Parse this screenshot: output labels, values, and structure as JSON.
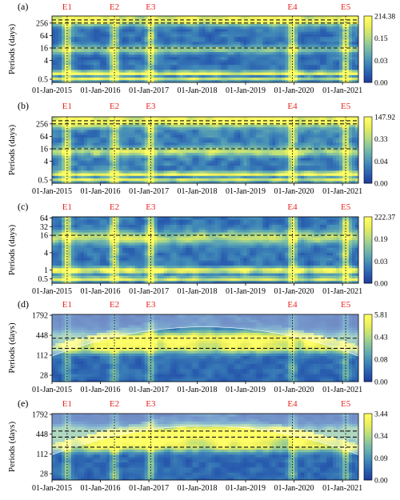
{
  "figure": {
    "ylabel": "Periods (days)",
    "event_color": "#e8251f",
    "line_color": "#111111"
  },
  "colormap": [
    "#1f3f9e",
    "#2a60b0",
    "#3f87b8",
    "#62aab0",
    "#8cc79b",
    "#bfe07a",
    "#ecef5c",
    "#ffff66"
  ],
  "events": [
    {
      "label": "E1",
      "date": "2015-04-25"
    },
    {
      "label": "E2",
      "date": "2016-04-16"
    },
    {
      "label": "E3",
      "date": "2017-01-15"
    },
    {
      "label": "E4",
      "date": "2019-12-20"
    },
    {
      "label": "E5",
      "date": "2021-01-25"
    }
  ],
  "x_axis": {
    "start": "2015-01-01",
    "end": "2021-05-01",
    "ticks": [
      "01-Jan-2015",
      "01-Jan-2016",
      "01-Jan-2017",
      "01-Jan-2018",
      "01-Jan-2019",
      "01-Jan-2020",
      "01-Jan-2021"
    ]
  },
  "chart_data": [
    {
      "type": "heatmap",
      "panel": "(a)",
      "ylabel": "Periods (days)",
      "y_scale": "log2",
      "y_ticks": [
        "0.5",
        "4",
        "16",
        "64",
        "256"
      ],
      "y_range": [
        0.35,
        560
      ],
      "colorbar": {
        "ticks": [
          "214.38",
          "0.15",
          "0.03",
          "0.00"
        ],
        "max": 214.38,
        "min": 0.0
      },
      "dashed_periods": [
        16,
        256,
        360
      ],
      "bands": [
        {
          "period": 1,
          "strength": 0.9,
          "width": 0.35
        },
        {
          "period": 0.5,
          "strength": 0.75,
          "width": 0.25
        },
        {
          "period": 14,
          "strength": 0.45,
          "width": 0.6
        },
        {
          "period": 365,
          "strength": 0.95,
          "width": 0.8
        }
      ],
      "base": 0.25,
      "event_power": 0.7,
      "coi": false
    },
    {
      "type": "heatmap",
      "panel": "(b)",
      "ylabel": "Periods (days)",
      "y_scale": "log2",
      "y_ticks": [
        "0.5",
        "4",
        "16",
        "64",
        "256"
      ],
      "y_range": [
        0.35,
        560
      ],
      "colorbar": {
        "ticks": [
          "147.92",
          "0.33",
          "0.04",
          "0.00"
        ],
        "max": 147.92,
        "min": 0.0
      },
      "dashed_periods": [
        16,
        256,
        360
      ],
      "bands": [
        {
          "period": 1,
          "strength": 0.85,
          "width": 0.35
        },
        {
          "period": 0.5,
          "strength": 0.7,
          "width": 0.25
        },
        {
          "period": 12,
          "strength": 0.55,
          "width": 0.7
        },
        {
          "period": 365,
          "strength": 0.95,
          "width": 0.9
        }
      ],
      "base": 0.3,
      "event_power": 0.65,
      "coi": false
    },
    {
      "type": "heatmap",
      "panel": "(c)",
      "ylabel": "Periods (days)",
      "y_scale": "log2",
      "y_ticks": [
        "0.5",
        "1",
        "4",
        "16",
        "32",
        "64"
      ],
      "y_range": [
        0.35,
        70
      ],
      "colorbar": {
        "ticks": [
          "222.37",
          "0.19",
          "0.03",
          "0.00"
        ],
        "max": 222.37,
        "min": 0.0
      },
      "dashed_periods": [
        16
      ],
      "bands": [
        {
          "period": 1,
          "strength": 0.9,
          "width": 0.35
        },
        {
          "period": 0.5,
          "strength": 0.75,
          "width": 0.25
        },
        {
          "period": 14,
          "strength": 0.6,
          "width": 0.7
        }
      ],
      "base": 0.25,
      "event_power": 0.75,
      "coi": false
    },
    {
      "type": "heatmap",
      "panel": "(d)",
      "ylabel": "Periods (days)",
      "y_scale": "log2",
      "y_ticks": [
        "28",
        "112",
        "448",
        "1792"
      ],
      "y_range": [
        18,
        1900
      ],
      "colorbar": {
        "ticks": [
          "5.81",
          "0.43",
          "0.08",
          "0.00"
        ],
        "max": 5.81,
        "min": 0.0
      },
      "dashed_periods": [
        180,
        365
      ],
      "bands": [
        {
          "period": 365,
          "strength": 0.95,
          "width": 0.7
        },
        {
          "period": 180,
          "strength": 0.65,
          "width": 0.5
        }
      ],
      "base": 0.2,
      "event_power": 0.4,
      "coi": true
    },
    {
      "type": "heatmap",
      "panel": "(e)",
      "ylabel": "Periods (days)",
      "y_scale": "log2",
      "y_ticks": [
        "28",
        "112",
        "448",
        "1792"
      ],
      "y_range": [
        18,
        1900
      ],
      "colorbar": {
        "ticks": [
          "3.44",
          "0.34",
          "0.09",
          "0.00"
        ],
        "max": 3.44,
        "min": 0.0
      },
      "dashed_periods": [
        180,
        365,
        560
      ],
      "bands": [
        {
          "period": 365,
          "strength": 0.9,
          "width": 0.8
        },
        {
          "period": 180,
          "strength": 0.55,
          "width": 0.5
        },
        {
          "period": 600,
          "strength": 0.6,
          "width": 0.6
        }
      ],
      "base": 0.2,
      "event_power": 0.5,
      "coi": true
    }
  ]
}
